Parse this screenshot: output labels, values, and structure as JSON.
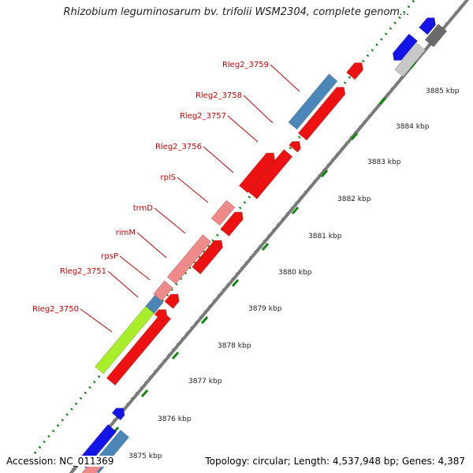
{
  "title": "Rhizobium leguminosarum bv. trifolii WSM2304, complete genom...",
  "accession": "Accession: NC_011369",
  "topology": "Topology: circular; Length: 4,537,948 bp; Genes: 4,387",
  "colors": {
    "axis": "#7a7a7a",
    "ticks": "#118811",
    "gene_red": "#ee1111",
    "gene_pink": "#ee8a8a",
    "gene_steel": "#4a86b8",
    "gene_blue": "#1414e6",
    "gene_lime": "#a8ee2a",
    "gene_gray": "#6a6a6a",
    "gene_lightgray": "#c8c8c8",
    "label": "#cc0000"
  },
  "scale": {
    "unit": "kbp",
    "ticks": [
      {
        "value": 3875,
        "label": "3875 kbp"
      },
      {
        "value": 3876,
        "label": "3876 kbp"
      },
      {
        "value": 3877,
        "label": "3877 kbp"
      },
      {
        "value": 3878,
        "label": "3878 kbp"
      },
      {
        "value": 3879,
        "label": "3879 kbp"
      },
      {
        "value": 3880,
        "label": "3880 kbp"
      },
      {
        "value": 3881,
        "label": "3881 kbp"
      },
      {
        "value": 3882,
        "label": "3882 kbp"
      },
      {
        "value": 3883,
        "label": "3883 kbp"
      },
      {
        "value": 3884,
        "label": "3884 kbp"
      },
      {
        "value": 3885,
        "label": "3885 kbp"
      }
    ]
  },
  "gene_labels": [
    {
      "label": "Rleg2_3759"
    },
    {
      "label": "Rleg2_3758"
    },
    {
      "label": "Rleg2_3757"
    },
    {
      "label": "Rleg2_3756"
    },
    {
      "label": "rplS"
    },
    {
      "label": "trmD"
    },
    {
      "label": "rimM"
    },
    {
      "label": "rpsP"
    },
    {
      "label": "Rleg2_3751"
    },
    {
      "label": "Rleg2_3750"
    }
  ]
}
